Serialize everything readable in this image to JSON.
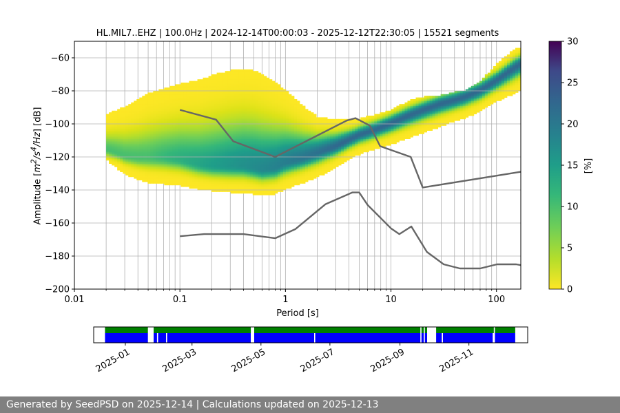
{
  "footer": {
    "text": "Generated by SeedPSD on 2025-12-14 | Calculations updated on 2025-12-13"
  },
  "colorbar": {
    "label": "[%]",
    "range": [
      0,
      30
    ],
    "ticks": [
      "0",
      "5",
      "10",
      "15",
      "20",
      "25",
      "30"
    ]
  },
  "chart_data": [
    {
      "type": "heatmap",
      "title": "HL.MIL7..EHZ | 100.0Hz | 2024-12-14T00:00:03 - 2025-12-12T22:30:05 | 15521 segments",
      "xlabel": "Period [s]",
      "ylabel_text": "Amplitude [",
      "ylabel_unit_html": "m<sup>2</sup>/s<sup>4</sup>/Hz",
      "ylabel_end": "] [dB]",
      "xscale": "log",
      "xlim": [
        0.01,
        170
      ],
      "ylim": [
        -200,
        -50
      ],
      "grid": true,
      "x_ticks": [
        {
          "value": 0.01,
          "label": "0.01"
        },
        {
          "value": 0.1,
          "label": "0.1"
        },
        {
          "value": 1,
          "label": "1"
        },
        {
          "value": 10,
          "label": "10"
        },
        {
          "value": 100,
          "label": "100"
        }
      ],
      "y_ticks": [
        {
          "value": -60,
          "label": "−60"
        },
        {
          "value": -80,
          "label": "−80"
        },
        {
          "value": -100,
          "label": "−100"
        },
        {
          "value": -120,
          "label": "−120"
        },
        {
          "value": -140,
          "label": "−140"
        },
        {
          "value": -160,
          "label": "−160"
        },
        {
          "value": -180,
          "label": "−180"
        },
        {
          "value": -200,
          "label": "−200"
        }
      ],
      "psd_distribution": {
        "period": [
          0.02,
          0.025,
          0.03,
          0.04,
          0.05,
          0.07,
          0.1,
          0.15,
          0.2,
          0.3,
          0.4,
          0.5,
          0.6,
          0.8,
          1.0,
          1.5,
          2.0,
          3.0,
          4.0,
          5.0,
          7.0,
          10,
          15,
          20,
          30,
          40,
          50,
          70,
          100,
          150,
          170
        ],
        "mode": [
          -116,
          -118,
          -120,
          -121,
          -121,
          -121,
          -122,
          -125,
          -126,
          -126,
          -126,
          -127,
          -128,
          -127,
          -124,
          -121,
          -118,
          -114,
          -110,
          -107,
          -104,
          -100,
          -95,
          -92,
          -88,
          -86,
          -84,
          -80,
          -74,
          -66,
          -64
        ],
        "upper": [
          -95,
          -92,
          -90,
          -86,
          -82,
          -79,
          -76,
          -74,
          -71,
          -68,
          -67,
          -68,
          -70,
          -75,
          -80,
          -90,
          -96,
          -98,
          -98,
          -97,
          -95,
          -92,
          -86,
          -84,
          -83,
          -81,
          -80,
          -75,
          -64,
          -55,
          -54
        ],
        "lower": [
          -122,
          -127,
          -131,
          -134,
          -136,
          -137,
          -138,
          -140,
          -141,
          -142,
          -142,
          -143,
          -144,
          -143,
          -140,
          -136,
          -133,
          -127,
          -122,
          -119,
          -116,
          -113,
          -109,
          -106,
          -102,
          -99,
          -97,
          -93,
          -87,
          -82,
          -80
        ]
      },
      "model_lines": [
        {
          "period": [
            0.1,
            0.22,
            0.32,
            0.8,
            3.8,
            4.6,
            6.3,
            7.9,
            15.4,
            20,
            170
          ],
          "db": [
            -91.5,
            -97.4,
            -110.5,
            -120,
            -98,
            -96.5,
            -101,
            -113.5,
            -120,
            -138.5,
            -129
          ]
        },
        {
          "period": [
            0.1,
            0.17,
            0.4,
            0.8,
            1.24,
            2.4,
            4.3,
            5.0,
            6.0,
            10,
            12,
            15.6,
            21.9,
            31.6,
            45,
            70,
            101,
            154,
            170
          ],
          "db": [
            -168,
            -166.7,
            -166.7,
            -169.2,
            -163.7,
            -148.6,
            -141.5,
            -141.5,
            -149,
            -163.2,
            -166.7,
            -162.1,
            -177.5,
            -185,
            -187.5,
            -187.5,
            -185,
            -185,
            -185.5
          ]
        }
      ]
    },
    {
      "type": "timeline",
      "x_ticks": [
        "2025-01",
        "2025-03",
        "2025-05",
        "2025-07",
        "2025-09",
        "2025-11"
      ],
      "x_tick_dates": [
        "2025-01-01",
        "2025-03-01",
        "2025-05-01",
        "2025-07-01",
        "2025-09-01",
        "2025-11-01"
      ],
      "range": [
        "2024-12-04",
        "2025-12-23"
      ],
      "series": [
        {
          "color": "#008000",
          "intervals": [
            [
              "2024-12-14",
              "2025-01-21"
            ],
            [
              "2025-01-26",
              "2025-04-22"
            ],
            [
              "2025-04-25",
              "2025-09-19"
            ],
            [
              "2025-09-20",
              "2025-09-22"
            ],
            [
              "2025-09-23",
              "2025-09-25"
            ],
            [
              "2025-10-03",
              "2025-11-23"
            ],
            [
              "2025-11-24",
              "2025-12-12"
            ]
          ]
        },
        {
          "color": "#0000ff",
          "intervals": [
            [
              "2024-12-14",
              "2025-01-21"
            ],
            [
              "2025-01-26",
              "2025-01-29"
            ],
            [
              "2025-01-30",
              "2025-02-06"
            ],
            [
              "2025-02-07",
              "2025-04-22"
            ],
            [
              "2025-04-25",
              "2025-06-17"
            ],
            [
              "2025-06-18",
              "2025-09-19"
            ],
            [
              "2025-09-20",
              "2025-09-22"
            ],
            [
              "2025-09-23",
              "2025-09-25"
            ],
            [
              "2025-10-03",
              "2025-10-08"
            ],
            [
              "2025-10-09",
              "2025-11-22"
            ],
            [
              "2025-11-24",
              "2025-12-12"
            ]
          ]
        }
      ]
    }
  ]
}
